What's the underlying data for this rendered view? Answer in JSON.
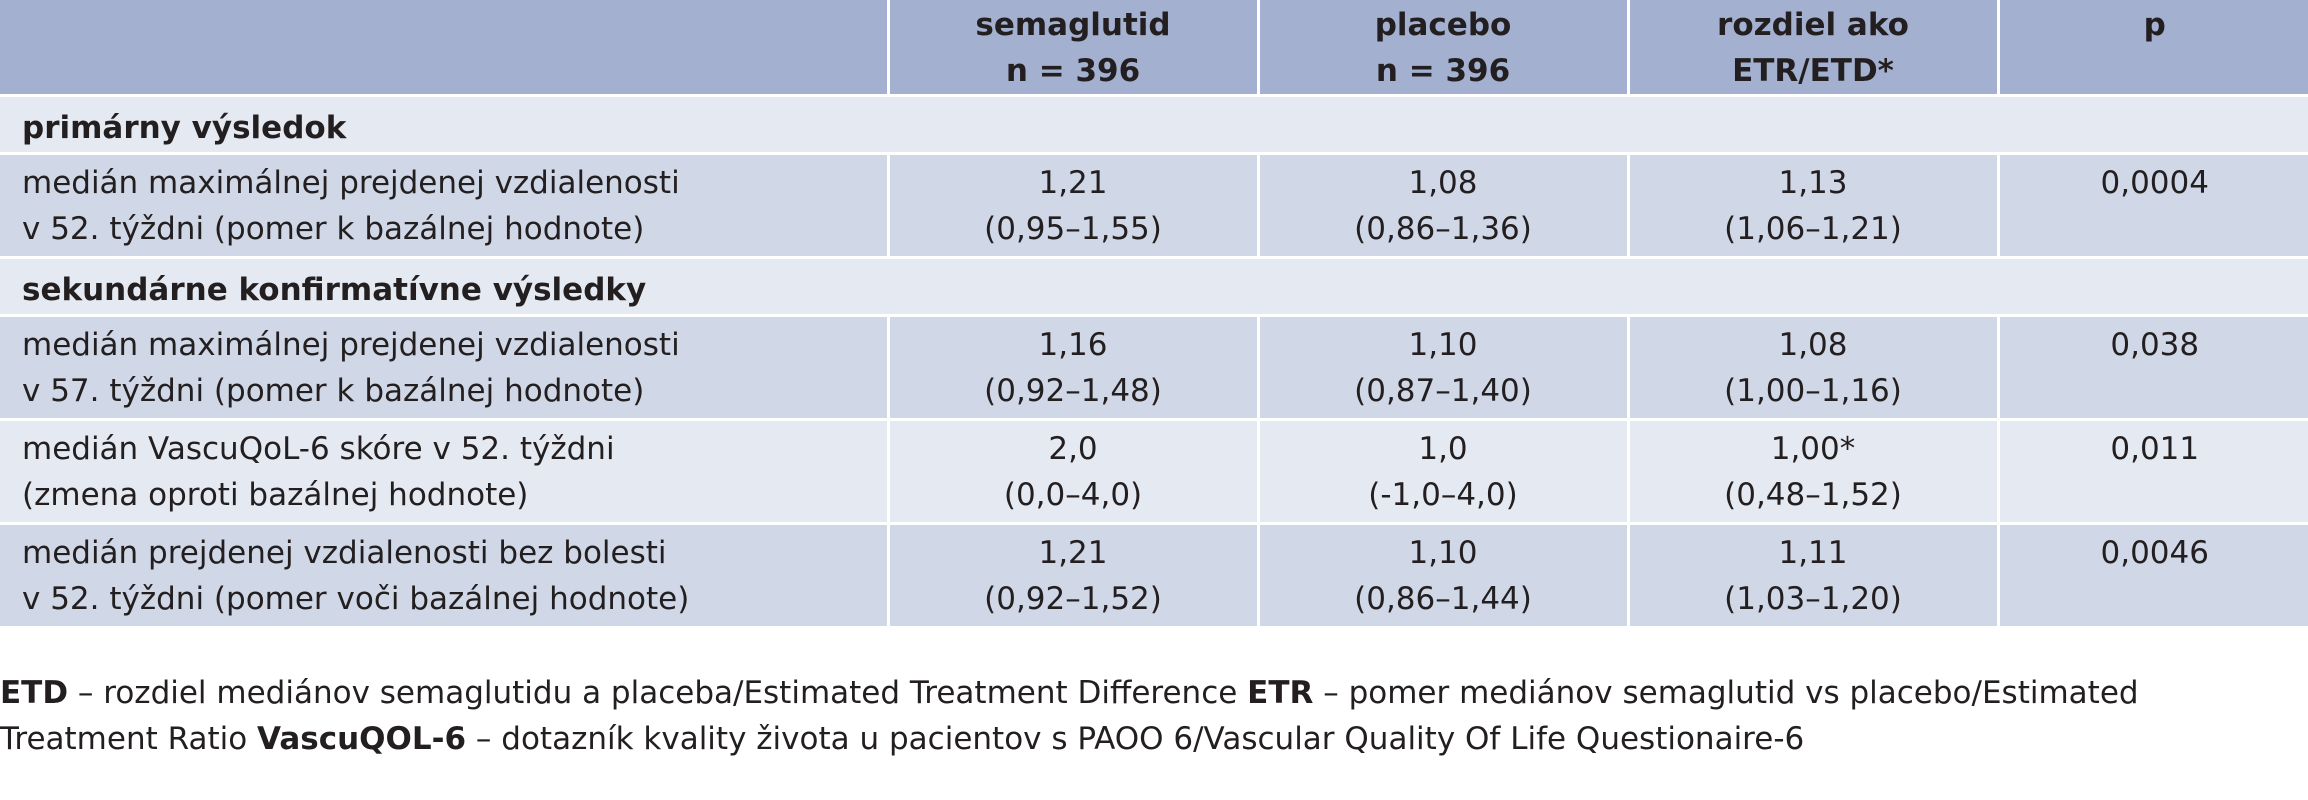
{
  "header": {
    "col1": [
      "",
      ""
    ],
    "semaglutid": [
      "semaglutid",
      "n = 396"
    ],
    "placebo": [
      "placebo",
      "n = 396"
    ],
    "difference": [
      "rozdiel ako",
      "ETR/ETD*"
    ],
    "p": [
      "p",
      ""
    ]
  },
  "sections": {
    "primary": "primárny výsledok",
    "secondary": "sekundárne konfirmatívne výsledky"
  },
  "rows": [
    {
      "label": [
        "medián maximálnej prejdenej vzdialenosti",
        "v 52. týždni (pomer k bazálnej hodnote)"
      ],
      "semaglutid": [
        "1,21",
        "(0,95–1,55)"
      ],
      "placebo": [
        "1,08",
        "(0,86–1,36)"
      ],
      "difference": [
        "1,13",
        "(1,06–1,21)"
      ],
      "p": "0,0004"
    },
    {
      "label": [
        "medián maximálnej prejdenej vzdialenosti",
        "v 57. týždni (pomer k bazálnej hodnote)"
      ],
      "semaglutid": [
        "1,16",
        "(0,92–1,48)"
      ],
      "placebo": [
        "1,10",
        "(0,87–1,40)"
      ],
      "difference": [
        "1,08",
        "(1,00–1,16)"
      ],
      "p": "0,038"
    },
    {
      "label": [
        "medián VascuQoL-6 skóre v 52. týždni",
        "(zmena oproti bazálnej hodnote)"
      ],
      "semaglutid": [
        "2,0",
        "(0,0–4,0)"
      ],
      "placebo": [
        "1,0",
        "(-1,0–4,0)"
      ],
      "difference": [
        "1,00*",
        "(0,48–1,52)"
      ],
      "p": "0,011"
    },
    {
      "label": [
        "medián prejdenej vzdialenosti bez bolesti",
        "v 52. týždni (pomer voči bazálnej hodnote)"
      ],
      "semaglutid": [
        "1,21",
        "(0,92–1,52)"
      ],
      "placebo": [
        "1,10",
        "(0,86–1,44)"
      ],
      "difference": [
        "1,11",
        "(1,03–1,20)"
      ],
      "p": "0,0046"
    }
  ],
  "footnote": {
    "etd_term": "ETD",
    "etd_text": " – rozdiel mediánov semaglutidu a placeba/Estimated Treatment Difference ",
    "etr_term": "ETR",
    "etr_text": " – pomer mediánov semaglutid vs placebo/Estimated",
    "etr_text_2": "Treatment Ratio ",
    "vq_term": "VascuQOL-6",
    "vq_text": " – dotazník kvality života u pacientov s PAOO 6/Vascular Quality Of Life Questionaire-6"
  },
  "colors": {
    "header_bg": "#a3b0cf",
    "row_dark": "#d0d7e6",
    "row_light": "#e5e9f2"
  }
}
